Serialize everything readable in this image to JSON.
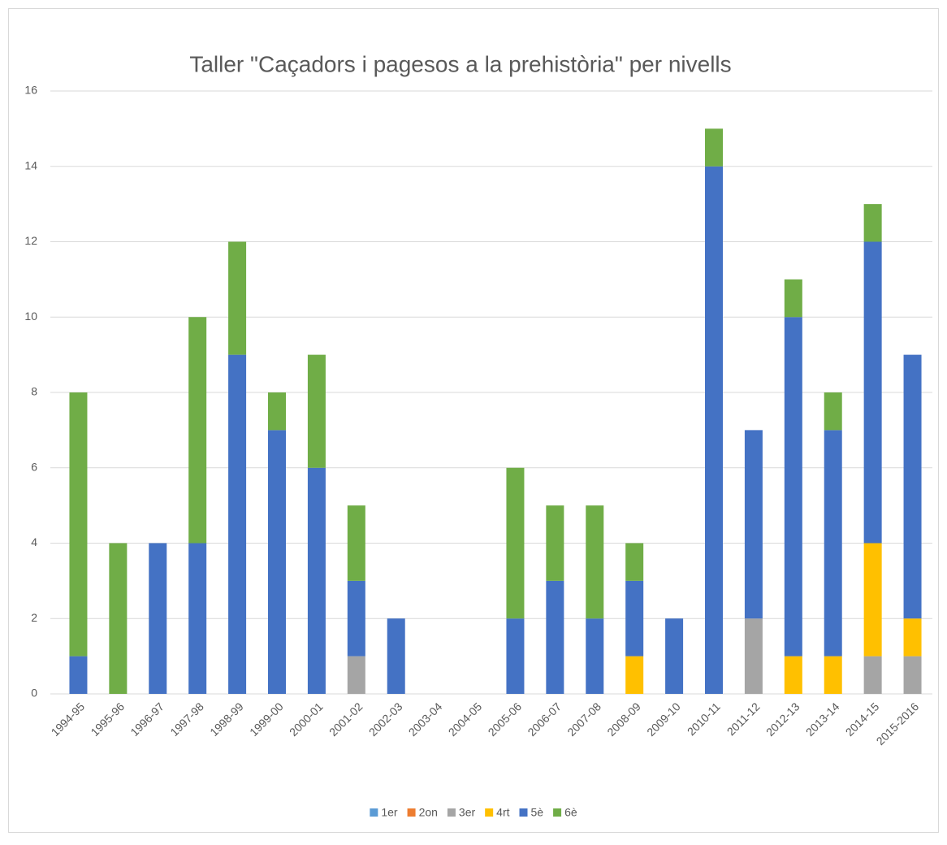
{
  "chart_data": {
    "type": "stacked_bar",
    "title": "Taller \"Caçadors i pagesos a la prehistòria\" per nivells",
    "categories": [
      "1994-95",
      "1995-96",
      "1996-97",
      "1997-98",
      "1998-99",
      "1999-00",
      "2000-01",
      "2001-02",
      "2002-03",
      "2003-04",
      "2004-05",
      "2005-06",
      "2006-07",
      "2007-08",
      "2008-09",
      "2009-10",
      "2010-11",
      "2011-12",
      "2012-13",
      "2013-14",
      "2014-15",
      "2015-2016"
    ],
    "series": [
      {
        "name": "1er",
        "color": "#5b9bd5",
        "values": [
          0,
          0,
          0,
          0,
          0,
          0,
          0,
          0,
          0,
          0,
          0,
          0,
          0,
          0,
          0,
          0,
          0,
          0,
          0,
          0,
          0,
          0
        ]
      },
      {
        "name": "2on",
        "color": "#ed7d31",
        "values": [
          0,
          0,
          0,
          0,
          0,
          0,
          0,
          0,
          0,
          0,
          0,
          0,
          0,
          0,
          0,
          0,
          0,
          0,
          0,
          0,
          0,
          0
        ]
      },
      {
        "name": "3er",
        "color": "#a5a5a5",
        "values": [
          0,
          0,
          0,
          0,
          0,
          0,
          0,
          1,
          0,
          0,
          0,
          0,
          0,
          0,
          0,
          0,
          0,
          2,
          0,
          0,
          1,
          1
        ]
      },
      {
        "name": "4rt",
        "color": "#ffc000",
        "values": [
          0,
          0,
          0,
          0,
          0,
          0,
          0,
          0,
          0,
          0,
          0,
          0,
          0,
          0,
          1,
          0,
          0,
          0,
          1,
          1,
          3,
          1
        ]
      },
      {
        "name": "5è",
        "color": "#4472c4",
        "values": [
          1,
          0,
          4,
          4,
          9,
          7,
          6,
          2,
          2,
          0,
          0,
          2,
          3,
          2,
          2,
          2,
          14,
          5,
          9,
          6,
          8,
          7
        ]
      },
      {
        "name": "6è",
        "color": "#70ad47",
        "values": [
          7,
          4,
          0,
          6,
          3,
          1,
          3,
          2,
          0,
          0,
          0,
          4,
          2,
          3,
          1,
          0,
          1,
          0,
          1,
          1,
          1,
          0
        ]
      }
    ],
    "ylim": [
      0,
      16
    ],
    "yticks": [
      0,
      2,
      4,
      6,
      8,
      10,
      12,
      14,
      16
    ],
    "grid": true,
    "legend": "bottom"
  }
}
